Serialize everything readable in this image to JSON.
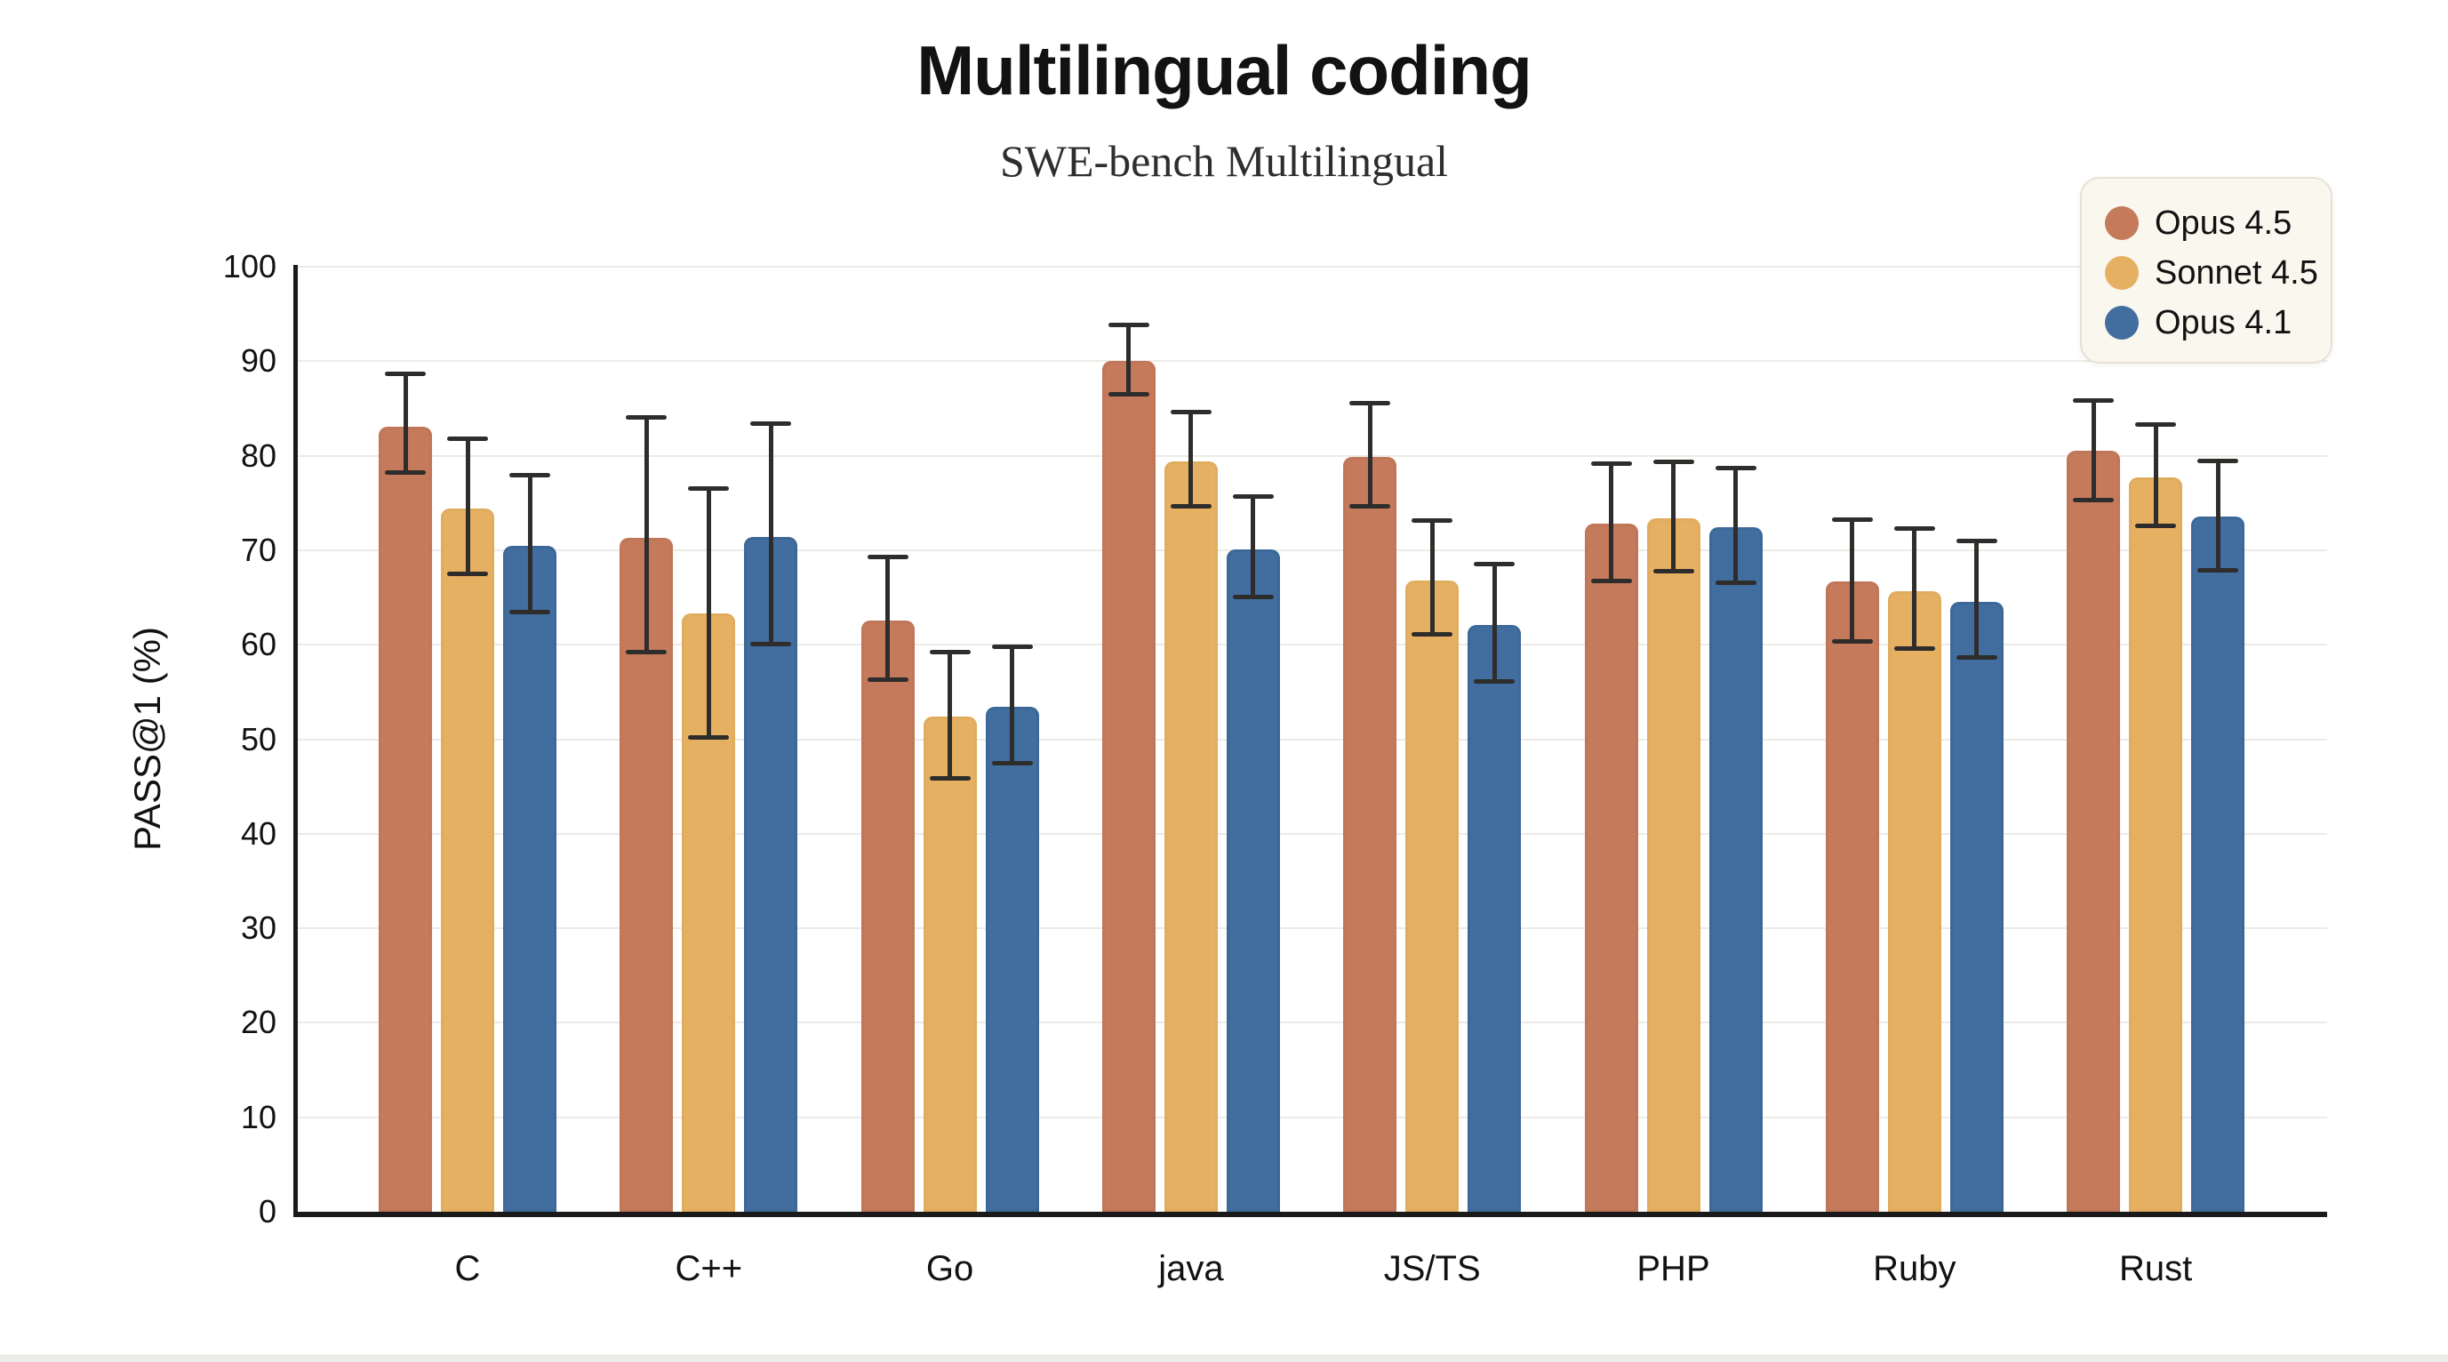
{
  "chart_data": {
    "type": "bar",
    "title": "Multilingual coding",
    "subtitle": "SWE-bench Multilingual",
    "ylabel": "PASS@1 (%)",
    "xlabel": "",
    "ylim": [
      0,
      100
    ],
    "yticks": [
      0,
      10,
      20,
      30,
      40,
      50,
      60,
      70,
      80,
      90,
      100
    ],
    "grid": "horizontal",
    "legend_position": "top-right",
    "categories": [
      "C",
      "C++",
      "Go",
      "java",
      "JS/TS",
      "PHP",
      "Ruby",
      "Rust"
    ],
    "series": [
      {
        "name": "Opus 4.5",
        "color": "#C57A5B",
        "edge_color": "#B36A4E",
        "values": [
          83.1,
          71.3,
          62.6,
          90.0,
          79.9,
          72.8,
          66.7,
          80.5
        ],
        "error_low": [
          78.0,
          59.0,
          56.1,
          86.3,
          74.4,
          66.5,
          60.1,
          75.1
        ],
        "error_high": [
          88.9,
          84.3,
          69.5,
          94.1,
          85.8,
          79.4,
          73.5,
          86.1
        ]
      },
      {
        "name": "Sonnet 4.5",
        "color": "#E5B062",
        "edge_color": "#D5A055",
        "values": [
          74.4,
          63.3,
          52.4,
          79.4,
          66.8,
          73.4,
          65.7,
          77.7
        ],
        "error_low": [
          67.3,
          50.0,
          45.6,
          74.4,
          60.9,
          67.5,
          59.4,
          72.3
        ],
        "error_high": [
          82.0,
          76.8,
          59.5,
          84.9,
          73.4,
          79.6,
          72.5,
          83.5
        ]
      },
      {
        "name": "Opus 4.1",
        "color": "#416E9F",
        "edge_color": "#305884",
        "values": [
          70.5,
          71.4,
          53.4,
          70.1,
          62.1,
          72.4,
          64.5,
          73.6
        ],
        "error_low": [
          63.2,
          59.8,
          47.2,
          64.8,
          55.9,
          66.3,
          58.4,
          67.6
        ],
        "error_high": [
          78.2,
          83.6,
          60.0,
          75.9,
          68.8,
          78.9,
          71.2,
          79.7
        ]
      }
    ],
    "style": {
      "error_bar_color": "#2e2d2b",
      "axis_color": "#1a1a1a",
      "gridline_color": "#edebe6",
      "legend_background": "#faf7ee",
      "legend_border": "#e6e1d3",
      "bottom_edge_strip_color": "#ececE9"
    }
  }
}
